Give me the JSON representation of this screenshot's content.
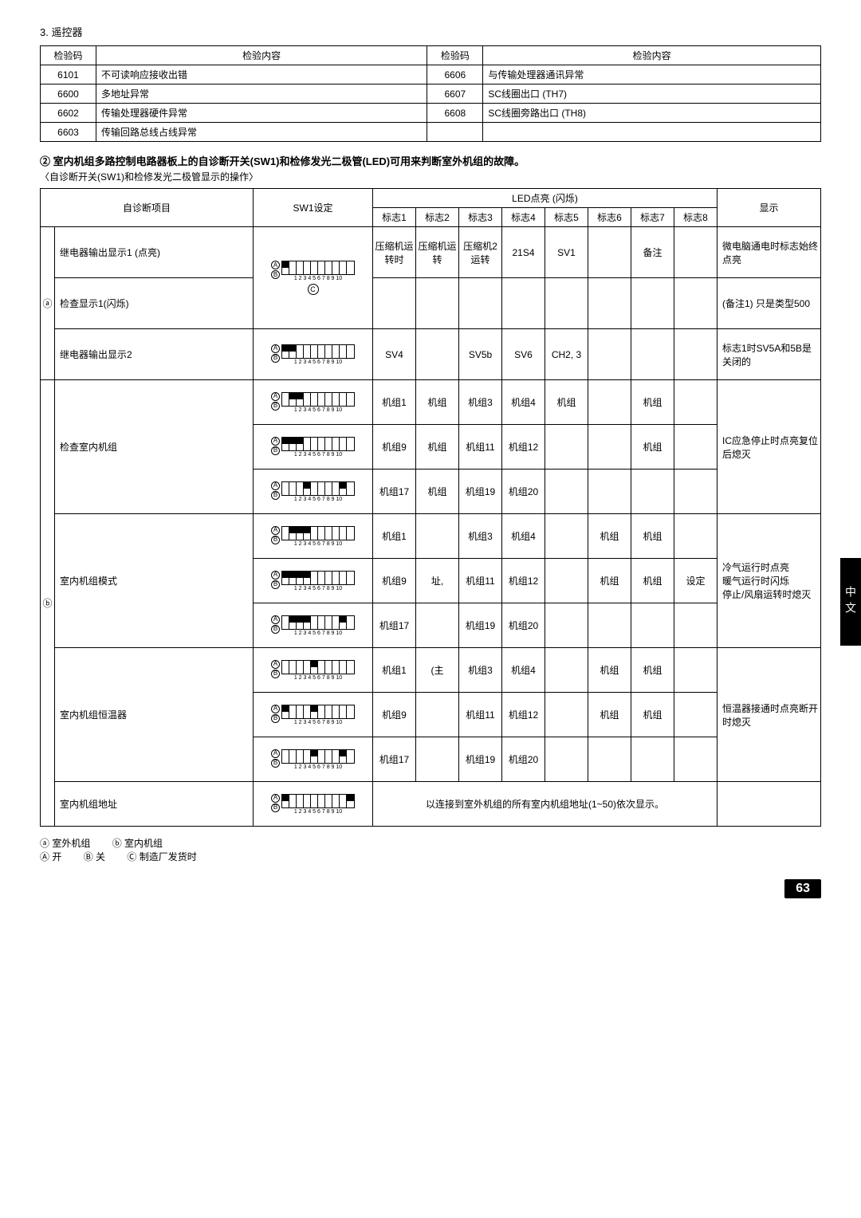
{
  "section3": {
    "title": "3. 遥控器"
  },
  "table1": {
    "headers": [
      "检验码",
      "检验内容",
      "检验码",
      "检验内容"
    ],
    "rows": [
      [
        "6101",
        "不可读响应接收出错",
        "6606",
        "与传输处理器通讯异常"
      ],
      [
        "6600",
        "多地址异常",
        "6607",
        "SC线圈出口 (TH7)"
      ],
      [
        "6602",
        "传输处理器硬件异常",
        "6608",
        "SC线圈旁路出口  (TH8)"
      ],
      [
        "6603",
        "传输回路总线占线异常",
        "",
        ""
      ]
    ],
    "col_widths": [
      "60px",
      "auto",
      "60px",
      "auto"
    ]
  },
  "subtitle": "② 室内机组多路控制电路器板上的自诊断开关(SW1)和检修发光二极管(LED)可用来判断室外机组的故障。",
  "subnote": "〈自诊断开关(SW1)和检修发光二极管显示的操作〉",
  "table2": {
    "header_top": [
      "自诊断项目",
      "SW1设定",
      "LED点亮 (闪烁)",
      "显示"
    ],
    "header_sub": [
      "标志1",
      "标志2",
      "标志3",
      "标志4",
      "标志5",
      "标志6",
      "标志7",
      "标志8"
    ],
    "group_a_label": "ⓐ",
    "group_b_label": "ⓑ",
    "rows_a": [
      {
        "item": "继电器输出显示1 (点亮)",
        "dip": [
          1,
          0,
          0,
          0,
          0,
          0,
          0,
          0,
          0,
          0
        ],
        "extra_circle": "C",
        "cells": [
          "压缩机运转时",
          "压缩机运转",
          "压缩机2运转",
          "21S4",
          "SV1",
          "",
          "备注",
          ""
        ],
        "display": "微电脑通电时标志始终点亮"
      },
      {
        "item": "检查显示1(闪烁)",
        "same_dip": true,
        "cells": [
          "",
          "",
          "",
          "",
          "",
          "",
          "",
          ""
        ],
        "display": "(备注1) 只是类型500"
      },
      {
        "item": "继电器输出显示2",
        "dip": [
          1,
          1,
          0,
          0,
          0,
          0,
          0,
          0,
          0,
          0
        ],
        "cells": [
          "SV4",
          "",
          "SV5b",
          "SV6",
          "CH2, 3",
          "",
          "",
          ""
        ],
        "display": "标志1时SV5A和5B是关闭的"
      }
    ],
    "rows_b": [
      {
        "item": "检查室内机组",
        "subrows": [
          {
            "dip": [
              0,
              1,
              1,
              0,
              0,
              0,
              0,
              0,
              0,
              0
            ],
            "cells": [
              "机组1",
              "机组",
              "机组3",
              "机组4",
              "机组",
              "",
              "机组",
              ""
            ]
          },
          {
            "dip": [
              1,
              1,
              1,
              0,
              0,
              0,
              0,
              0,
              0,
              0
            ],
            "cells": [
              "机组9",
              "机组",
              "机组11",
              "机组12",
              "",
              "",
              "机组",
              ""
            ]
          },
          {
            "dip": [
              0,
              0,
              0,
              1,
              0,
              0,
              0,
              0,
              1,
              0
            ],
            "cells": [
              "机组17",
              "机组",
              "机组19",
              "机组20",
              "",
              "",
              "",
              ""
            ]
          }
        ],
        "display": "IC应急停止时点亮复位后熄灭"
      },
      {
        "item": "室内机组模式",
        "subrows": [
          {
            "dip": [
              0,
              1,
              1,
              1,
              0,
              0,
              0,
              0,
              0,
              0
            ],
            "cells": [
              "机组1",
              "",
              "机组3",
              "机组4",
              "",
              "机组",
              "机组",
              ""
            ]
          },
          {
            "dip": [
              1,
              1,
              1,
              1,
              0,
              0,
              0,
              0,
              0,
              0
            ],
            "cells": [
              "机组9",
              "址,",
              "机组11",
              "机组12",
              "",
              "机组",
              "机组",
              "设定"
            ]
          },
          {
            "dip": [
              0,
              1,
              1,
              1,
              0,
              0,
              0,
              0,
              1,
              0
            ],
            "cells": [
              "机组17",
              "",
              "机组19",
              "机组20",
              "",
              "",
              "",
              ""
            ]
          }
        ],
        "display": "冷气运行时点亮\n暖气运行时闪烁\n停止/风扇运转时熄灭"
      },
      {
        "item": "室内机组恒温器",
        "subrows": [
          {
            "dip": [
              0,
              0,
              0,
              0,
              1,
              0,
              0,
              0,
              0,
              0
            ],
            "cells": [
              "机组1",
              "(主",
              "机组3",
              "机组4",
              "",
              "机组",
              "机组",
              ""
            ]
          },
          {
            "dip": [
              1,
              0,
              0,
              0,
              1,
              0,
              0,
              0,
              0,
              0
            ],
            "cells": [
              "机组9",
              "",
              "机组11",
              "机组12",
              "",
              "机组",
              "机组",
              ""
            ]
          },
          {
            "dip": [
              0,
              0,
              0,
              0,
              1,
              0,
              0,
              0,
              1,
              0
            ],
            "cells": [
              "机组17",
              "",
              "机组19",
              "机组20",
              "",
              "",
              "",
              ""
            ]
          }
        ],
        "display": "恒温器接通时点亮断开时熄灭"
      },
      {
        "item": "室内机组地址",
        "dip": [
          1,
          0,
          0,
          0,
          0,
          0,
          0,
          0,
          0,
          1
        ],
        "merged_text": "以连接到室外机组的所有室内机组地址(1~50)依次显示。",
        "display": ""
      }
    ]
  },
  "footer": {
    "a": "ⓐ 室外机组",
    "b": "ⓑ 室内机组",
    "A": "Ⓐ 开",
    "B": "Ⓑ 关",
    "C": "Ⓒ 制造厂发货时"
  },
  "side_tab": "中文",
  "page": "63",
  "colors": {
    "black": "#000000",
    "white": "#ffffff"
  }
}
